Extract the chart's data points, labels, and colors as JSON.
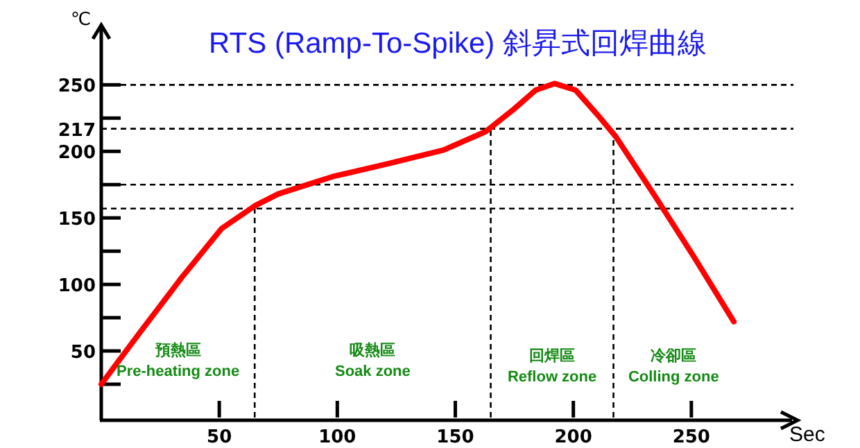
{
  "chart_data": {
    "type": "line",
    "title": "RTS (Ramp-To-Spike) 斜昇式回焊曲線",
    "xlabel": "Sec",
    "ylabel": "℃",
    "x": [
      0,
      16,
      34,
      51,
      65,
      75,
      98,
      122,
      145,
      163,
      175,
      184,
      192,
      201,
      210,
      218,
      234,
      251,
      268
    ],
    "series": [
      {
        "color": "#ff0000",
        "values": [
          25,
          63,
          105,
          142,
          159,
          168,
          181,
          191,
          201,
          215,
          232,
          246,
          251,
          246,
          228,
          211,
          168,
          121,
          72
        ]
      }
    ],
    "xlim": [
      0,
      295
    ],
    "ylim": [
      0,
      295
    ],
    "xticks": [
      50,
      100,
      150,
      200,
      250
    ],
    "yticks": [
      {
        "value": 25,
        "label": null
      },
      50,
      {
        "value": 75,
        "label": null
      },
      100,
      {
        "value": 125,
        "label": null
      },
      150,
      {
        "value": 175,
        "label": null
      },
      200,
      217,
      {
        "value": 225,
        "label": null
      },
      250
    ],
    "ref_lines": [
      {
        "axis": "y",
        "value": 250,
        "color": "#000000",
        "line_style": "dashed"
      },
      {
        "axis": "y",
        "value": 217,
        "color": "#000000",
        "line_style": "dashed"
      },
      {
        "axis": "y",
        "value": 175,
        "color": "#000000",
        "line_style": "dashed"
      },
      {
        "axis": "y",
        "value": 157,
        "color": "#000000",
        "line_style": "dashed"
      },
      {
        "axis": "x",
        "value": 65,
        "color": "#000000",
        "line_style": "dashed"
      },
      {
        "axis": "x",
        "value": 165,
        "color": "#000000",
        "line_style": "dashed"
      },
      {
        "axis": "x",
        "value": 217,
        "color": "#000000",
        "line_style": "dashed"
      }
    ],
    "annotations": [
      "預熱區",
      "Pre-heating zone",
      "吸熱區",
      "Soak zone",
      "回焊區",
      "Reflow zone",
      "冷卻區",
      "Colling zone"
    ],
    "marker": "none",
    "line_style": "solid"
  }
}
